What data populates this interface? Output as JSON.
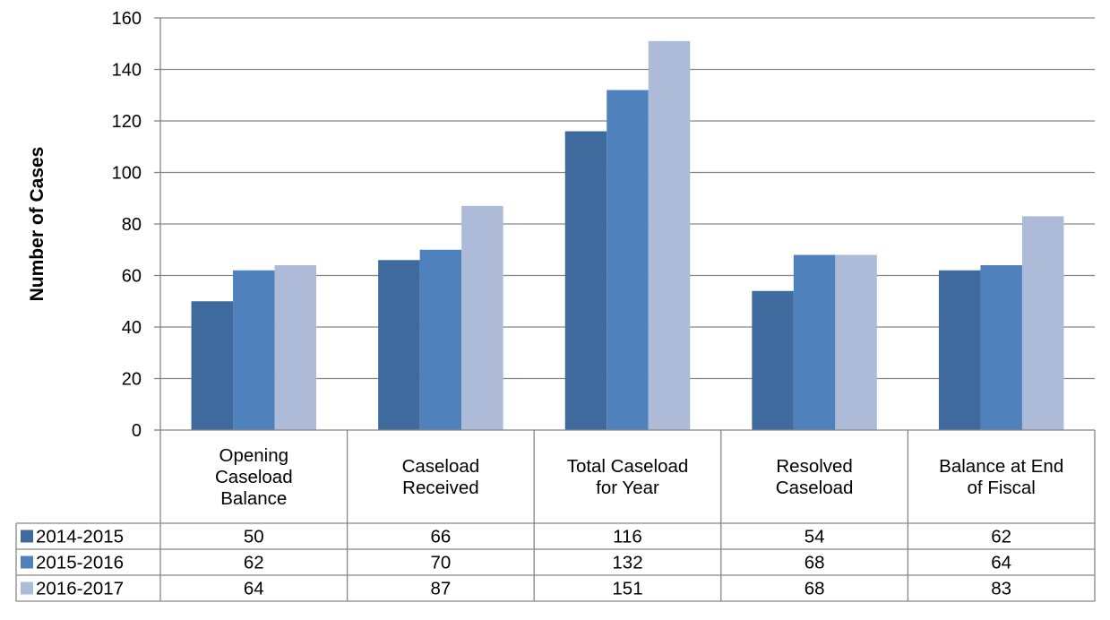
{
  "chart_data": {
    "type": "bar",
    "ylabel": "Number of Cases",
    "ylim": [
      0,
      160
    ],
    "yticks": [
      0,
      20,
      40,
      60,
      80,
      100,
      120,
      140,
      160
    ],
    "grid": true,
    "legend": "data-table",
    "categories": [
      [
        "Opening",
        "Caseload",
        "Balance"
      ],
      [
        "Caseload",
        "Received"
      ],
      [
        "Total Caseload",
        "for Year"
      ],
      [
        "Resolved",
        "Caseload"
      ],
      [
        "Balance at End",
        "of Fiscal"
      ]
    ],
    "series": [
      {
        "name": "2014-2015",
        "color": "#3f6a9e",
        "values": [
          50,
          66,
          116,
          54,
          62
        ]
      },
      {
        "name": "2015-2016",
        "color": "#4f81bd",
        "values": [
          62,
          70,
          132,
          68,
          64
        ]
      },
      {
        "name": "2016-2017",
        "color": "#aebbd8",
        "values": [
          64,
          87,
          151,
          68,
          83
        ]
      }
    ]
  }
}
